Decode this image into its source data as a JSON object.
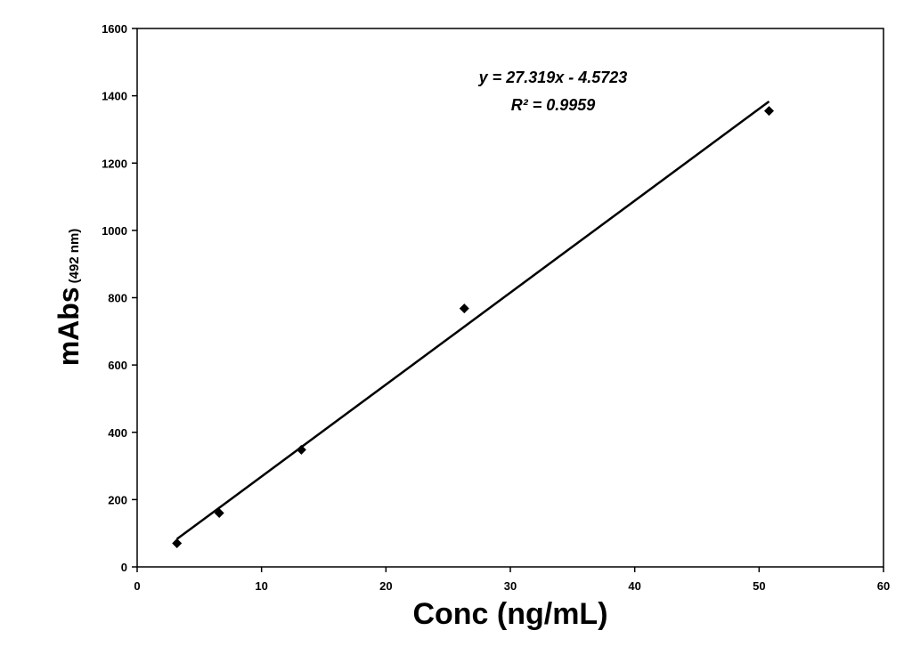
{
  "chart_data": {
    "type": "scatter",
    "xlabel": "Conc (ng/mL)",
    "ylabel": "mAbs",
    "ylabel_subscript": "(492 nm)",
    "xlim": [
      0,
      60
    ],
    "ylim": [
      0,
      1600
    ],
    "xticks": [
      0,
      10,
      20,
      30,
      40,
      50,
      60
    ],
    "yticks": [
      0,
      200,
      400,
      600,
      800,
      1000,
      1200,
      1400,
      1600
    ],
    "grid": false,
    "legend": "none",
    "series": [
      {
        "marker": "diamond",
        "color": "#000000",
        "points": [
          {
            "x": 3.2,
            "y": 70
          },
          {
            "x": 6.6,
            "y": 160
          },
          {
            "x": 13.2,
            "y": 348
          },
          {
            "x": 26.3,
            "y": 768
          },
          {
            "x": 50.8,
            "y": 1355
          }
        ]
      }
    ],
    "trendline": {
      "slope": 27.319,
      "intercept": -4.5723,
      "x_range": [
        3.2,
        50.8
      ],
      "equation": "y = 27.319x - 4.5723",
      "r2": "R² = 0.9959"
    }
  }
}
